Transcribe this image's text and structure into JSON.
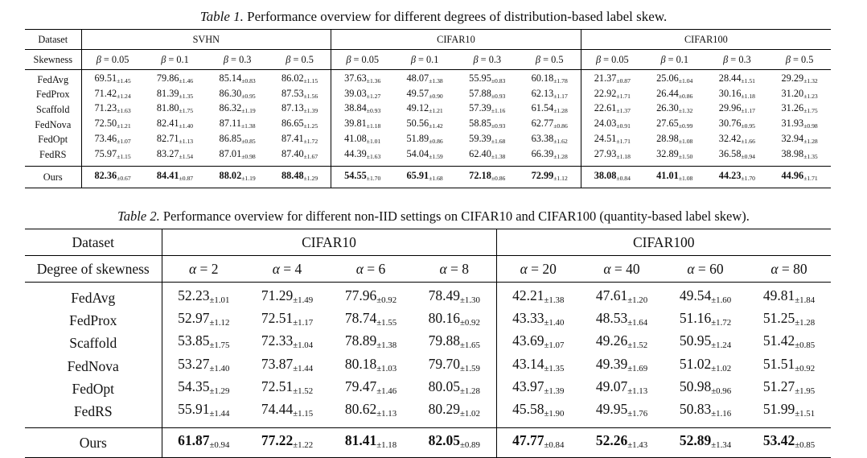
{
  "table1": {
    "caption_label": "Table 1.",
    "caption_text": " Performance overview for different degrees of distribution-based label skew.",
    "dataset_label": "Dataset",
    "skew_label": "Skewness",
    "datasets": [
      "SVHN",
      "CIFAR10",
      "CIFAR100"
    ],
    "param_symbol": "β",
    "params": [
      "0.05",
      "0.1",
      "0.3",
      "0.5",
      "0.05",
      "0.1",
      "0.3",
      "0.5",
      "0.05",
      "0.1",
      "0.3",
      "0.5"
    ],
    "rows": [
      {
        "method": "FedAvg",
        "cells": [
          [
            "69.51",
            "±1.45"
          ],
          [
            "79.86",
            "±1.46"
          ],
          [
            "85.14",
            "±0.83"
          ],
          [
            "86.02",
            "±1.15"
          ],
          [
            "37.63",
            "±1.36"
          ],
          [
            "48.07",
            "±1.38"
          ],
          [
            "55.95",
            "±0.83"
          ],
          [
            "60.18",
            "±1.78"
          ],
          [
            "21.37",
            "±0.87"
          ],
          [
            "25.06",
            "±1.04"
          ],
          [
            "28.44",
            "±1.51"
          ],
          [
            "29.29",
            "±1.32"
          ]
        ]
      },
      {
        "method": "FedProx",
        "cells": [
          [
            "71.42",
            "±1.24"
          ],
          [
            "81.39",
            "±1.35"
          ],
          [
            "86.30",
            "±0.95"
          ],
          [
            "87.53",
            "±1.56"
          ],
          [
            "39.03",
            "±1.27"
          ],
          [
            "49.57",
            "±0.90"
          ],
          [
            "57.88",
            "±0.93"
          ],
          [
            "62.13",
            "±1.17"
          ],
          [
            "22.92",
            "±1.71"
          ],
          [
            "26.44",
            "±0.86"
          ],
          [
            "30.16",
            "±1.18"
          ],
          [
            "31.20",
            "±1.23"
          ]
        ]
      },
      {
        "method": "Scaffold",
        "cells": [
          [
            "71.23",
            "±1.63"
          ],
          [
            "81.80",
            "±1.75"
          ],
          [
            "86.32",
            "±1.19"
          ],
          [
            "87.13",
            "±1.39"
          ],
          [
            "38.84",
            "±0.93"
          ],
          [
            "49.12",
            "±1.21"
          ],
          [
            "57.39",
            "±1.16"
          ],
          [
            "61.54",
            "±1.28"
          ],
          [
            "22.61",
            "±1.37"
          ],
          [
            "26.30",
            "±1.32"
          ],
          [
            "29.96",
            "±1.17"
          ],
          [
            "31.26",
            "±1.75"
          ]
        ]
      },
      {
        "method": "FedNova",
        "cells": [
          [
            "72.50",
            "±1.21"
          ],
          [
            "82.41",
            "±1.40"
          ],
          [
            "87.11",
            "±1.38"
          ],
          [
            "86.65",
            "±1.25"
          ],
          [
            "39.81",
            "±1.18"
          ],
          [
            "50.56",
            "±1.42"
          ],
          [
            "58.85",
            "±0.93"
          ],
          [
            "62.77",
            "±0.86"
          ],
          [
            "24.03",
            "±0.91"
          ],
          [
            "27.65",
            "±0.99"
          ],
          [
            "30.76",
            "±0.95"
          ],
          [
            "31.93",
            "±0.98"
          ]
        ]
      },
      {
        "method": "FedOpt",
        "cells": [
          [
            "73.46",
            "±1.07"
          ],
          [
            "82.71",
            "±1.13"
          ],
          [
            "86.85",
            "±0.85"
          ],
          [
            "87.41",
            "±1.72"
          ],
          [
            "41.08",
            "±1.01"
          ],
          [
            "51.89",
            "±0.86"
          ],
          [
            "59.39",
            "±1.68"
          ],
          [
            "63.38",
            "±1.62"
          ],
          [
            "24.51",
            "±1.71"
          ],
          [
            "28.98",
            "±1.08"
          ],
          [
            "32.42",
            "±1.66"
          ],
          [
            "32.94",
            "±1.28"
          ]
        ]
      },
      {
        "method": "FedRS",
        "cells": [
          [
            "75.97",
            "±1.15"
          ],
          [
            "83.27",
            "±1.54"
          ],
          [
            "87.01",
            "±0.98"
          ],
          [
            "87.40",
            "±1.67"
          ],
          [
            "44.39",
            "±1.63"
          ],
          [
            "54.04",
            "±1.59"
          ],
          [
            "62.40",
            "±1.38"
          ],
          [
            "66.39",
            "±1.28"
          ],
          [
            "27.93",
            "±1.18"
          ],
          [
            "32.89",
            "±1.50"
          ],
          [
            "36.58",
            "±0.94"
          ],
          [
            "38.98",
            "±1.35"
          ]
        ]
      }
    ],
    "ours": {
      "method": "Ours",
      "cells": [
        [
          "82.36",
          "±0.67"
        ],
        [
          "84.41",
          "±0.87"
        ],
        [
          "88.02",
          "±1.19"
        ],
        [
          "88.48",
          "±1.29"
        ],
        [
          "54.55",
          "±1.70"
        ],
        [
          "65.91",
          "±1.68"
        ],
        [
          "72.18",
          "±0.86"
        ],
        [
          "72.99",
          "±1.12"
        ],
        [
          "38.08",
          "±0.84"
        ],
        [
          "41.01",
          "±1.08"
        ],
        [
          "44.23",
          "±1.70"
        ],
        [
          "44.96",
          "±1.71"
        ]
      ]
    }
  },
  "table2": {
    "caption_label": "Table 2.",
    "caption_text": " Performance overview for different non-IID settings on CIFAR10 and CIFAR100 (quantity-based label skew).",
    "dataset_label": "Dataset",
    "skew_label": "Degree of skewness",
    "datasets": [
      "CIFAR10",
      "CIFAR100"
    ],
    "param_symbol": "α",
    "params": [
      "2",
      "4",
      "6",
      "8",
      "20",
      "40",
      "60",
      "80"
    ],
    "rows": [
      {
        "method": "FedAvg",
        "cells": [
          [
            "52.23",
            "±1.01"
          ],
          [
            "71.29",
            "±1.49"
          ],
          [
            "77.96",
            "±0.92"
          ],
          [
            "78.49",
            "±1.30"
          ],
          [
            "42.21",
            "±1.38"
          ],
          [
            "47.61",
            "±1.20"
          ],
          [
            "49.54",
            "±1.60"
          ],
          [
            "49.81",
            "±1.84"
          ]
        ]
      },
      {
        "method": "FedProx",
        "cells": [
          [
            "52.97",
            "±1.12"
          ],
          [
            "72.51",
            "±1.17"
          ],
          [
            "78.74",
            "±1.55"
          ],
          [
            "80.16",
            "±0.92"
          ],
          [
            "43.33",
            "±1.40"
          ],
          [
            "48.53",
            "±1.64"
          ],
          [
            "51.16",
            "±1.72"
          ],
          [
            "51.25",
            "±1.28"
          ]
        ]
      },
      {
        "method": "Scaffold",
        "cells": [
          [
            "53.85",
            "±1.75"
          ],
          [
            "72.33",
            "±1.04"
          ],
          [
            "78.89",
            "±1.38"
          ],
          [
            "79.88",
            "±1.65"
          ],
          [
            "43.69",
            "±1.07"
          ],
          [
            "49.26",
            "±1.52"
          ],
          [
            "50.95",
            "±1.24"
          ],
          [
            "51.42",
            "±0.85"
          ]
        ]
      },
      {
        "method": "FedNova",
        "cells": [
          [
            "53.27",
            "±1.40"
          ],
          [
            "73.87",
            "±1.44"
          ],
          [
            "80.18",
            "±1.03"
          ],
          [
            "79.70",
            "±1.59"
          ],
          [
            "43.14",
            "±1.35"
          ],
          [
            "49.39",
            "±1.69"
          ],
          [
            "51.02",
            "±1.02"
          ],
          [
            "51.51",
            "±0.92"
          ]
        ]
      },
      {
        "method": "FedOpt",
        "cells": [
          [
            "54.35",
            "±1.29"
          ],
          [
            "72.51",
            "±1.52"
          ],
          [
            "79.47",
            "±1.46"
          ],
          [
            "80.05",
            "±1.28"
          ],
          [
            "43.97",
            "±1.39"
          ],
          [
            "49.07",
            "±1.13"
          ],
          [
            "50.98",
            "±0.96"
          ],
          [
            "51.27",
            "±1.95"
          ]
        ]
      },
      {
        "method": "FedRS",
        "cells": [
          [
            "55.91",
            "±1.44"
          ],
          [
            "74.44",
            "±1.15"
          ],
          [
            "80.62",
            "±1.13"
          ],
          [
            "80.29",
            "±1.02"
          ],
          [
            "45.58",
            "±1.90"
          ],
          [
            "49.95",
            "±1.76"
          ],
          [
            "50.83",
            "±1.16"
          ],
          [
            "51.99",
            "±1.51"
          ]
        ]
      }
    ],
    "ours": {
      "method": "Ours",
      "cells": [
        [
          "61.87",
          "±0.94"
        ],
        [
          "77.22",
          "±1.22"
        ],
        [
          "81.41",
          "±1.18"
        ],
        [
          "82.05",
          "±0.89"
        ],
        [
          "47.77",
          "±0.84"
        ],
        [
          "52.26",
          "±1.43"
        ],
        [
          "52.89",
          "±1.34"
        ],
        [
          "53.42",
          "±0.85"
        ]
      ]
    }
  }
}
